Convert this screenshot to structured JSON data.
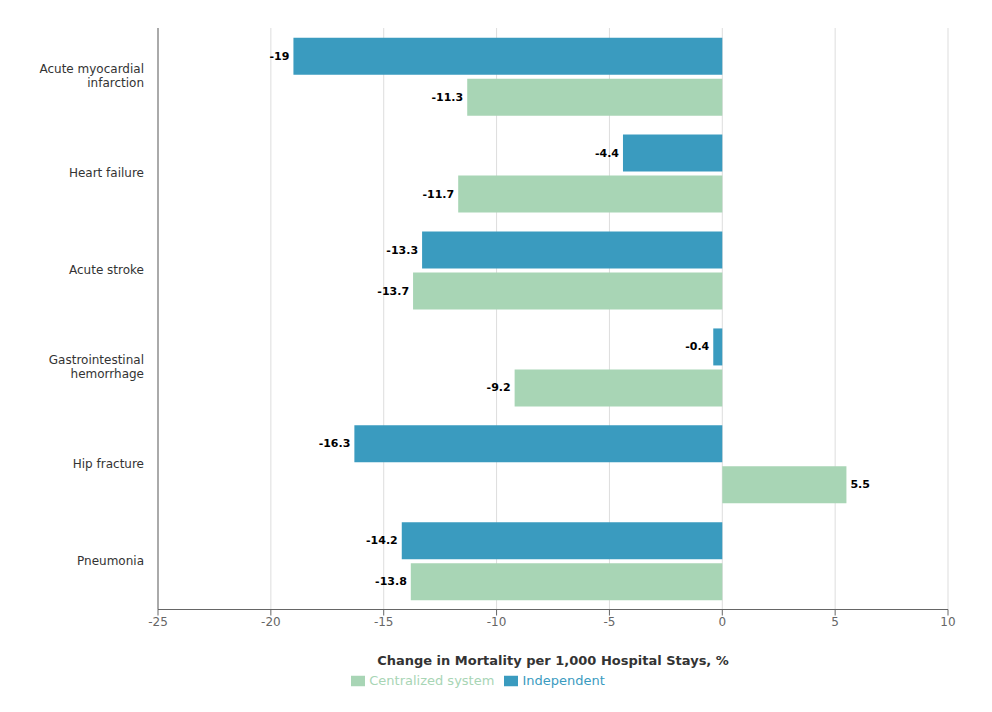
{
  "chart_data": {
    "type": "bar",
    "orientation": "horizontal",
    "categories": [
      "Pneumonia",
      "Hip fracture",
      "Gastrointestinal\nhemorrhage",
      "Acute stroke",
      "Heart failure",
      "Acute myocardial\ninfarction"
    ],
    "series": [
      {
        "name": "Independent",
        "color": "#3a9bbf",
        "values": [
          -14.2,
          -16.3,
          -0.4,
          -13.3,
          -4.4,
          -19.0
        ]
      },
      {
        "name": "Centralized system",
        "color": "#a8d5b5",
        "values": [
          -13.8,
          5.5,
          -9.2,
          -13.7,
          -11.7,
          -11.3
        ]
      }
    ],
    "xlabel": "Change in Mortality per 1,000 Hospital Stays, %",
    "xlim": [
      -25,
      10
    ],
    "xticks": [
      -25,
      -20,
      -15,
      -10,
      -5,
      0,
      5,
      10
    ],
    "grid": true,
    "legend": "bottom",
    "data_labels": true
  }
}
